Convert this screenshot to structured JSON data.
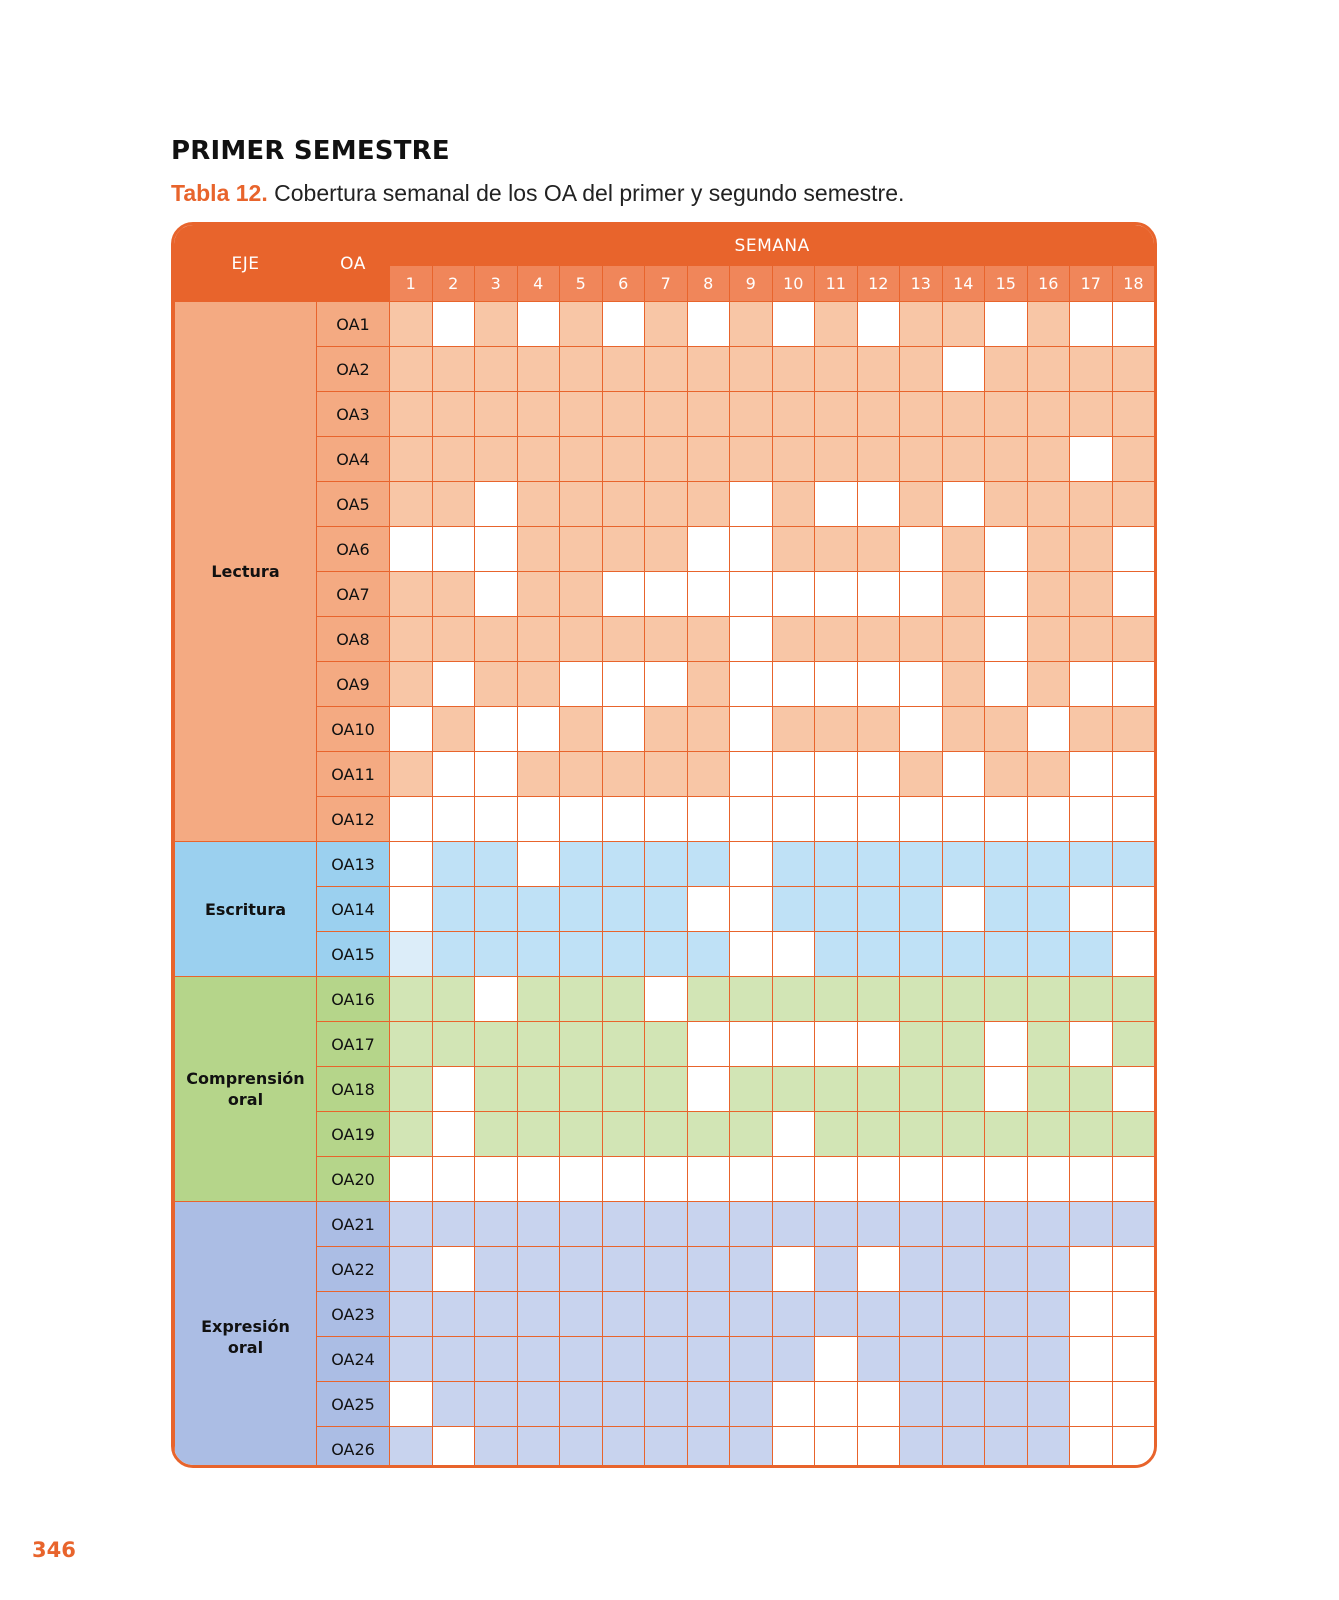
{
  "page": {
    "title": "PRIMER SEMESTRE",
    "caption_label": "Tabla 12.",
    "caption_text": " Cobertura semanal de los OA del primer y segundo semestre.",
    "page_number": "346"
  },
  "table": {
    "headers": {
      "eje": "EJE",
      "oa": "OA",
      "semana": "SEMANA"
    },
    "weeks": [
      "1",
      "2",
      "3",
      "4",
      "5",
      "6",
      "7",
      "8",
      "9",
      "10",
      "11",
      "12",
      "13",
      "14",
      "15",
      "16",
      "17",
      "18"
    ],
    "colors": {
      "header": "#e8642c",
      "week_header": "#f0865a",
      "border": "#e8642c",
      "empty": "#ffffff"
    },
    "groups": [
      {
        "name": "Lectura",
        "label_color": "#f4aa82",
        "fill_color": "#f8c6a6",
        "rows": [
          {
            "oa": "OA1",
            "weeks": [
              1,
              0,
              1,
              0,
              1,
              0,
              1,
              0,
              1,
              0,
              1,
              0,
              1,
              1,
              0,
              1,
              0,
              0
            ]
          },
          {
            "oa": "OA2",
            "weeks": [
              1,
              1,
              1,
              1,
              1,
              1,
              1,
              1,
              1,
              1,
              1,
              1,
              1,
              0,
              1,
              1,
              1,
              1
            ]
          },
          {
            "oa": "OA3",
            "weeks": [
              1,
              1,
              1,
              1,
              1,
              1,
              1,
              1,
              1,
              1,
              1,
              1,
              1,
              1,
              1,
              1,
              1,
              1
            ]
          },
          {
            "oa": "OA4",
            "weeks": [
              1,
              1,
              1,
              1,
              1,
              1,
              1,
              1,
              1,
              1,
              1,
              1,
              1,
              1,
              1,
              1,
              0,
              1
            ]
          },
          {
            "oa": "OA5",
            "weeks": [
              1,
              1,
              0,
              1,
              1,
              1,
              1,
              1,
              0,
              1,
              0,
              0,
              1,
              0,
              1,
              1,
              1,
              1
            ]
          },
          {
            "oa": "OA6",
            "weeks": [
              0,
              0,
              0,
              1,
              1,
              1,
              1,
              0,
              0,
              1,
              1,
              1,
              0,
              1,
              0,
              1,
              1,
              0
            ]
          },
          {
            "oa": "OA7",
            "weeks": [
              1,
              1,
              0,
              1,
              1,
              0,
              0,
              0,
              0,
              0,
              0,
              0,
              0,
              1,
              0,
              1,
              1,
              0
            ]
          },
          {
            "oa": "OA8",
            "weeks": [
              1,
              1,
              1,
              1,
              1,
              1,
              1,
              1,
              0,
              1,
              1,
              1,
              1,
              1,
              0,
              1,
              1,
              1
            ]
          },
          {
            "oa": "OA9",
            "weeks": [
              1,
              0,
              1,
              1,
              0,
              0,
              0,
              1,
              0,
              0,
              0,
              0,
              0,
              1,
              0,
              1,
              0,
              0
            ]
          },
          {
            "oa": "OA10",
            "weeks": [
              0,
              1,
              0,
              0,
              1,
              0,
              1,
              1,
              0,
              1,
              1,
              1,
              0,
              1,
              1,
              0,
              1,
              1
            ]
          },
          {
            "oa": "OA11",
            "weeks": [
              1,
              0,
              0,
              1,
              1,
              1,
              1,
              1,
              0,
              0,
              0,
              0,
              1,
              0,
              1,
              1,
              0,
              0
            ]
          },
          {
            "oa": "OA12",
            "weeks": [
              0,
              0,
              0,
              0,
              0,
              0,
              0,
              0,
              0,
              0,
              0,
              0,
              0,
              0,
              0,
              0,
              0,
              0
            ]
          }
        ]
      },
      {
        "name": "Escritura",
        "label_color": "#9bd0ef",
        "fill_color": "#bfe1f6",
        "partial_color": "#dcedf9",
        "rows": [
          {
            "oa": "OA13",
            "weeks": [
              0,
              1,
              1,
              0,
              1,
              1,
              1,
              1,
              0,
              1,
              1,
              1,
              1,
              1,
              1,
              1,
              1,
              1
            ]
          },
          {
            "oa": "OA14",
            "weeks": [
              0,
              1,
              1,
              1,
              1,
              1,
              1,
              0,
              0,
              1,
              1,
              1,
              1,
              0,
              1,
              1,
              0,
              0
            ]
          },
          {
            "oa": "OA15",
            "weeks": [
              2,
              1,
              1,
              1,
              1,
              1,
              1,
              1,
              0,
              0,
              1,
              1,
              1,
              1,
              1,
              1,
              1,
              0
            ]
          }
        ]
      },
      {
        "name": "Comprensión oral",
        "label_color": "#b5d58a",
        "fill_color": "#d2e5b5",
        "rows": [
          {
            "oa": "OA16",
            "weeks": [
              1,
              1,
              0,
              1,
              1,
              1,
              0,
              1,
              1,
              1,
              1,
              1,
              1,
              1,
              1,
              1,
              1,
              1
            ]
          },
          {
            "oa": "OA17",
            "weeks": [
              1,
              1,
              1,
              1,
              1,
              1,
              1,
              0,
              0,
              0,
              0,
              0,
              1,
              1,
              0,
              1,
              0,
              1
            ]
          },
          {
            "oa": "OA18",
            "weeks": [
              1,
              0,
              1,
              1,
              1,
              1,
              1,
              0,
              1,
              1,
              1,
              1,
              1,
              1,
              0,
              1,
              1,
              0
            ]
          },
          {
            "oa": "OA19",
            "weeks": [
              1,
              0,
              1,
              1,
              1,
              1,
              1,
              1,
              1,
              0,
              1,
              1,
              1,
              1,
              1,
              1,
              1,
              1
            ]
          },
          {
            "oa": "OA20",
            "weeks": [
              0,
              0,
              0,
              0,
              0,
              0,
              0,
              0,
              0,
              0,
              0,
              0,
              0,
              0,
              0,
              0,
              0,
              0
            ]
          }
        ]
      },
      {
        "name": "Expresión oral",
        "label_color": "#abbde4",
        "fill_color": "#c8d3ee",
        "rows": [
          {
            "oa": "OA21",
            "weeks": [
              1,
              1,
              1,
              1,
              1,
              1,
              1,
              1,
              1,
              1,
              1,
              1,
              1,
              1,
              1,
              1,
              1,
              1
            ]
          },
          {
            "oa": "OA22",
            "weeks": [
              1,
              0,
              1,
              1,
              1,
              1,
              1,
              1,
              1,
              0,
              1,
              0,
              1,
              1,
              1,
              1,
              0,
              0
            ]
          },
          {
            "oa": "OA23",
            "weeks": [
              1,
              1,
              1,
              1,
              1,
              1,
              1,
              1,
              1,
              1,
              1,
              1,
              1,
              1,
              1,
              1,
              0,
              0
            ]
          },
          {
            "oa": "OA24",
            "weeks": [
              1,
              1,
              1,
              1,
              1,
              1,
              1,
              1,
              1,
              1,
              0,
              1,
              1,
              1,
              1,
              1,
              0,
              0
            ]
          },
          {
            "oa": "OA25",
            "weeks": [
              0,
              1,
              1,
              1,
              1,
              1,
              1,
              1,
              1,
              0,
              0,
              0,
              1,
              1,
              1,
              1,
              0,
              0
            ]
          },
          {
            "oa": "OA26",
            "weeks": [
              1,
              0,
              1,
              1,
              1,
              1,
              1,
              1,
              1,
              0,
              0,
              0,
              1,
              1,
              1,
              1,
              0,
              0
            ]
          }
        ]
      }
    ]
  }
}
